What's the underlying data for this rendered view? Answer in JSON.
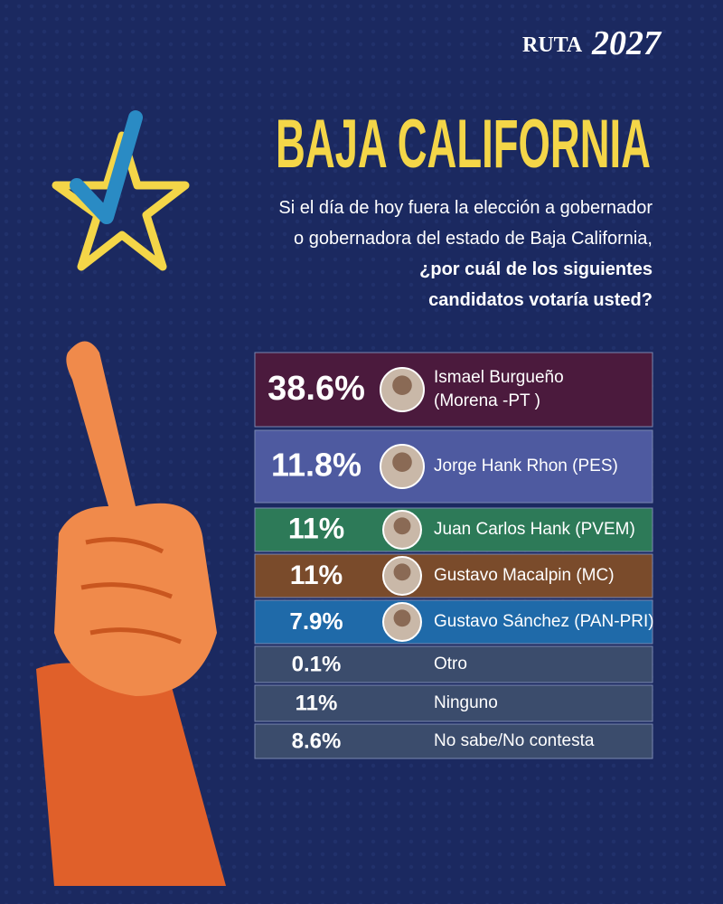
{
  "brand": {
    "word": "RUTA",
    "year": "2027"
  },
  "title": "BAJA CALIFORNIA",
  "question": {
    "lines": [
      "Si el día de hoy fuera la elección a gobernador",
      "o gobernadora del estado de Baja California,",
      "¿por cuál de los siguientes",
      "candidatos votaría usted?"
    ]
  },
  "results": [
    {
      "percent": "38.6%",
      "name": [
        "Ismael Burgueño",
        "(Morena -PT )"
      ]
    },
    {
      "percent": "11.8%",
      "name": [
        "Jorge Hank Rhon (PES)"
      ]
    },
    {
      "percent": "11%",
      "name": [
        "Juan Carlos Hank (PVEM)"
      ]
    },
    {
      "percent": "11%",
      "name": [
        "Gustavo Macalpin (MC)"
      ]
    },
    {
      "percent": "7.9%",
      "name": [
        "Gustavo Sánchez (PAN-PRI)"
      ]
    },
    {
      "percent": "0.1%",
      "name": [
        "Otro"
      ]
    },
    {
      "percent": "11%",
      "name": [
        "Ninguno"
      ]
    },
    {
      "percent": "8.6%",
      "name": [
        "No sabe/No contesta"
      ]
    }
  ]
}
